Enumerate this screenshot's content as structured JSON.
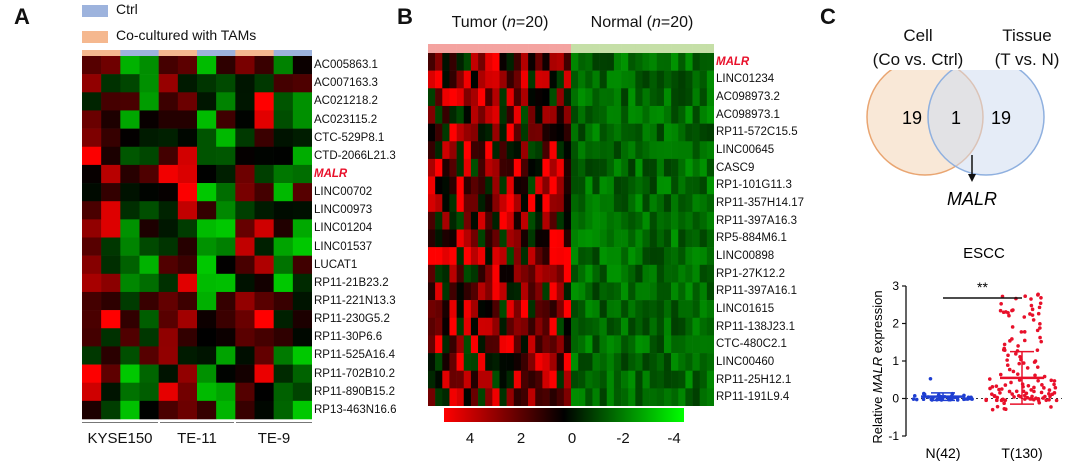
{
  "panels": {
    "a": "A",
    "b": "B",
    "c": "C"
  },
  "colors": {
    "ctrl": "#9db3dd",
    "co": "#f5b88f",
    "tumor": "#f4a3a0",
    "normal": "#c5dfa7",
    "highlight": "#e8102a",
    "up": "#ff0000",
    "down": "#00ff00"
  },
  "panelA": {
    "legend": [
      {
        "label": "Ctrl",
        "color": "#9db3dd"
      },
      {
        "label": "Co-cultured with TAMs",
        "color": "#f5b88f"
      }
    ],
    "genes": [
      "AC005863.1",
      "AC007163.3",
      "AC021218.2",
      "AC023115.2",
      "CTC-529P8.1",
      "CTD-2066L21.3",
      "MALR",
      "LINC00702",
      "LINC00973",
      "LINC01204",
      "LINC01537",
      "LUCAT1",
      "RP11-21B23.2",
      "RP11-221N13.3",
      "RP11-230G5.2",
      "RP11-30P6.6",
      "RP11-525A16.4",
      "RP11-702B10.2",
      "RP11-890B15.2",
      "RP13-463N16.6"
    ],
    "highlight_gene": "MALR",
    "groups": [
      "KYSE150",
      "TE-11",
      "TE-9"
    ],
    "column_conditions": [
      "co",
      "co",
      "ctrl",
      "ctrl",
      "co",
      "co",
      "ctrl",
      "ctrl",
      "co",
      "co",
      "ctrl",
      "ctrl"
    ]
  },
  "panelB": {
    "groups": [
      {
        "label": "Tumor",
        "n": "n",
        "count": "20"
      },
      {
        "label": "Normal",
        "n": "n",
        "count": "20"
      }
    ],
    "genes": [
      "MALR",
      "LINC01234",
      "AC098973.2",
      "AC098973.1",
      "RP11-572C15.5",
      "LINC00645",
      "CASC9",
      "RP1-101G11.3",
      "RP11-357H14.17",
      "RP11-397A16.3",
      "RP5-884M6.1",
      "LINC00898",
      "RP1-27K12.2",
      "RP11-397A16.1",
      "LINC01615",
      "RP11-138J23.1",
      "CTC-480C2.1",
      "LINC00460",
      "RP11-25H12.1",
      "RP11-191L9.4"
    ],
    "highlight_gene": "MALR",
    "colorbar_ticks": [
      "4",
      "2",
      "0",
      "-2",
      "-4"
    ]
  },
  "panelC": {
    "venn": {
      "left_title": "Cell",
      "left_sub": "(Co vs. Ctrl)",
      "right_title": "Tissue",
      "right_sub": "(T vs. N)",
      "left_only": "19",
      "overlap": "1",
      "right_only": "19",
      "result": "MALR",
      "left_color": "#f3d2b0",
      "right_color": "#cfdcf0"
    }
  },
  "chart_data": {
    "type": "scatter",
    "title": "ESCC",
    "xlabel": "",
    "ylabel": "Relative MALR expression",
    "categories": [
      "N(42)",
      "T(130)"
    ],
    "series": [
      {
        "name": "N(42)",
        "color": "#1f3fd1",
        "n": 42,
        "mean": 0.05,
        "sd": 0.1
      },
      {
        "name": "T(130)",
        "color": "#e8102a",
        "n": 130,
        "mean": 0.55,
        "sd": 0.7
      }
    ],
    "ylim": [
      -1,
      3
    ],
    "yticks": [
      "-1",
      "0",
      "1",
      "2",
      "3"
    ],
    "significance": "**",
    "baseline": 0
  }
}
